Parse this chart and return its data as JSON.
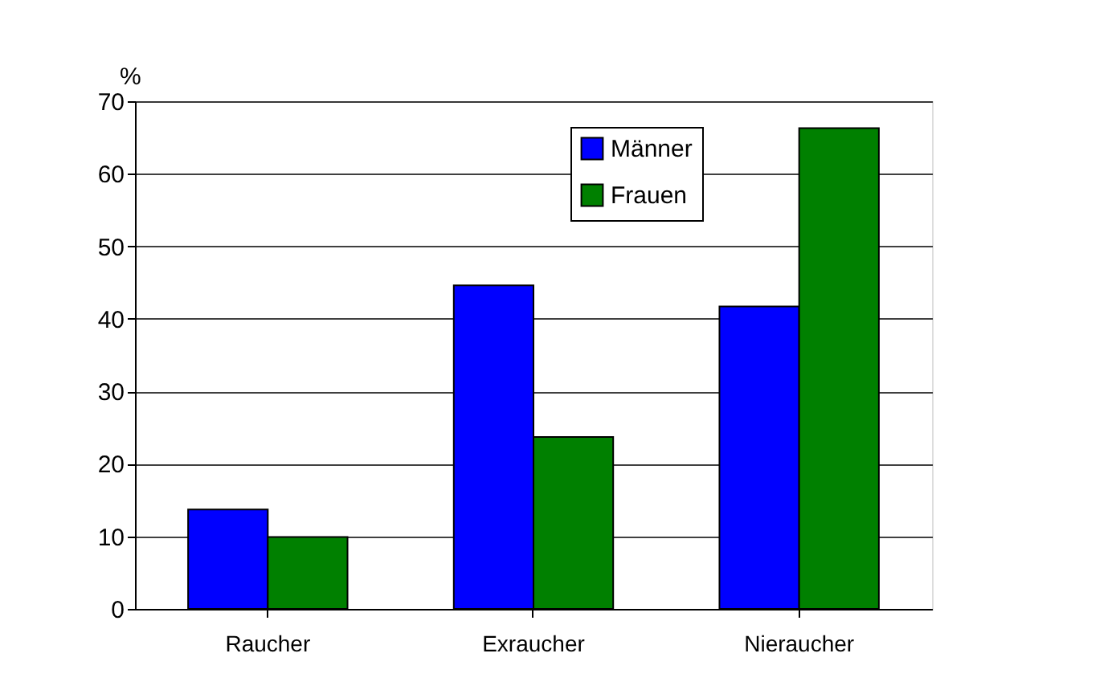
{
  "chart_data": {
    "type": "bar",
    "ylabel": "%",
    "categories": [
      "Raucher",
      "Exraucher",
      "Nieraucher"
    ],
    "series": [
      {
        "name": "Männer",
        "color": "#0000ff",
        "values": [
          13.7,
          44.6,
          41.7
        ]
      },
      {
        "name": "Frauen",
        "color": "#008000",
        "values": [
          9.9,
          23.7,
          66.3
        ]
      }
    ],
    "ylim": [
      0,
      70
    ],
    "yticks": [
      0,
      10,
      20,
      30,
      40,
      50,
      60,
      70
    ],
    "grid": "y",
    "legend": "top right"
  }
}
